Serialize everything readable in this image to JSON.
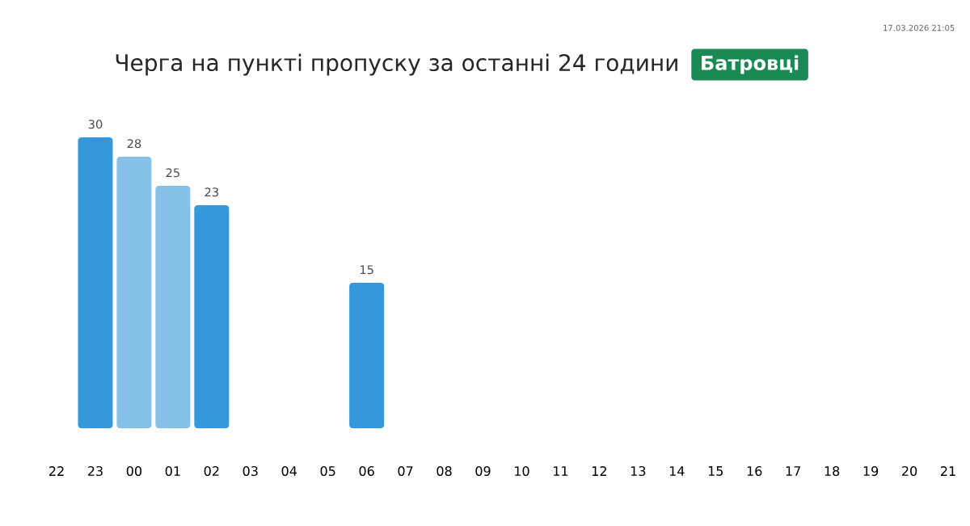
{
  "chart_data": {
    "type": "bar",
    "title": "Черга на пункті пропуску за останні 24 години",
    "subtitle": "Батровці",
    "annotations": [
      "17.03.2026 21:05"
    ],
    "categories": [
      "22",
      "23",
      "00",
      "01",
      "02",
      "03",
      "04",
      "05",
      "06",
      "07",
      "08",
      "09",
      "10",
      "11",
      "12",
      "13",
      "14",
      "15",
      "16",
      "17",
      "18",
      "19",
      "20",
      "21"
    ],
    "values": [
      null,
      30,
      28,
      25,
      23,
      null,
      null,
      null,
      15,
      null,
      null,
      null,
      null,
      null,
      null,
      null,
      null,
      null,
      null,
      null,
      null,
      null,
      null,
      null
    ],
    "colors": [
      "#3498db",
      "#3498db",
      "#85c1e9",
      "#85c1e9",
      "#3498db",
      "#3498db",
      "#3498db",
      "#3498db",
      "#3498db",
      "#3498db",
      "#3498db",
      "#3498db",
      "#3498db",
      "#3498db",
      "#3498db",
      "#3498db",
      "#3498db",
      "#3498db",
      "#3498db",
      "#3498db",
      "#3498db",
      "#3498db",
      "#3498db",
      "#3498db"
    ],
    "data_labels": true
  }
}
